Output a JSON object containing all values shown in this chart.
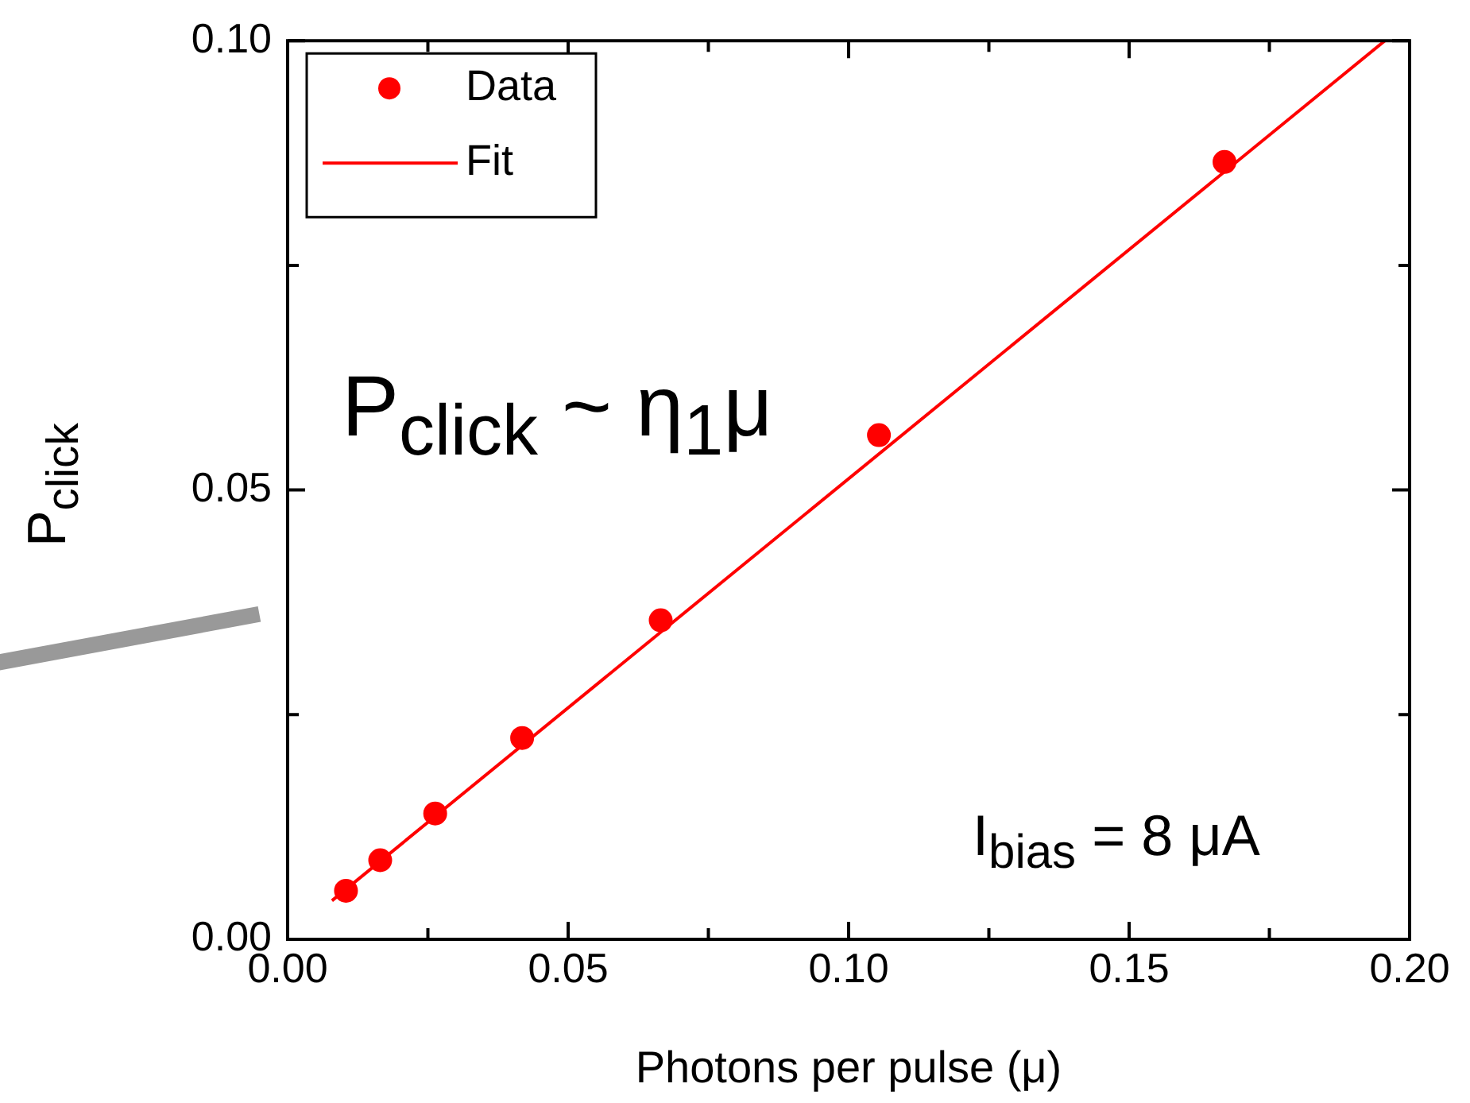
{
  "chart_data": {
    "type": "scatter",
    "xlabel": "Photons per pulse (μ)",
    "ylabel": "P$_{click}$",
    "annotations": [
      "P$_{click}$ ~ η$_{1}$μ",
      "I$_{bias}$ = 8 μA"
    ],
    "xlim": [
      0,
      0.2
    ],
    "xticks": [
      {
        "value": 0,
        "label": "0.00"
      },
      {
        "value": 0.025,
        "label": null
      },
      {
        "value": 0.05,
        "label": "0.05"
      },
      {
        "value": 0.075,
        "label": null
      },
      {
        "value": 0.1,
        "label": "0.10"
      },
      {
        "value": 0.125,
        "label": null
      },
      {
        "value": 0.15,
        "label": "0.15"
      },
      {
        "value": 0.175,
        "label": null
      },
      {
        "value": 0.2,
        "label": "0.20"
      }
    ],
    "ylim": [
      0,
      0.1
    ],
    "yticks": [
      {
        "value": 0,
        "label": "0.00"
      },
      {
        "value": 0.025,
        "label": null
      },
      {
        "value": 0.05,
        "label": "0.05"
      },
      {
        "value": 0.075,
        "label": null
      },
      {
        "value": 0.1,
        "label": "0.10"
      }
    ],
    "grid": false,
    "legend": "top left",
    "series": [
      {
        "name": "Data",
        "type": "scatter",
        "marker": "circle",
        "color": "#ff0000",
        "x": [
          0.0104,
          0.0165,
          0.0263,
          0.0418,
          0.0665,
          0.1054,
          0.167
        ],
        "values": [
          0.0054,
          0.0088,
          0.014,
          0.0224,
          0.0355,
          0.0561,
          0.0865
        ]
      },
      {
        "name": "Fit",
        "type": "line",
        "marker": "none",
        "line_style": "solid",
        "color": "#ff0000",
        "x": [
          0.0079,
          0.1956
        ],
        "values": [
          0.0043,
          0.1
        ]
      }
    ]
  }
}
